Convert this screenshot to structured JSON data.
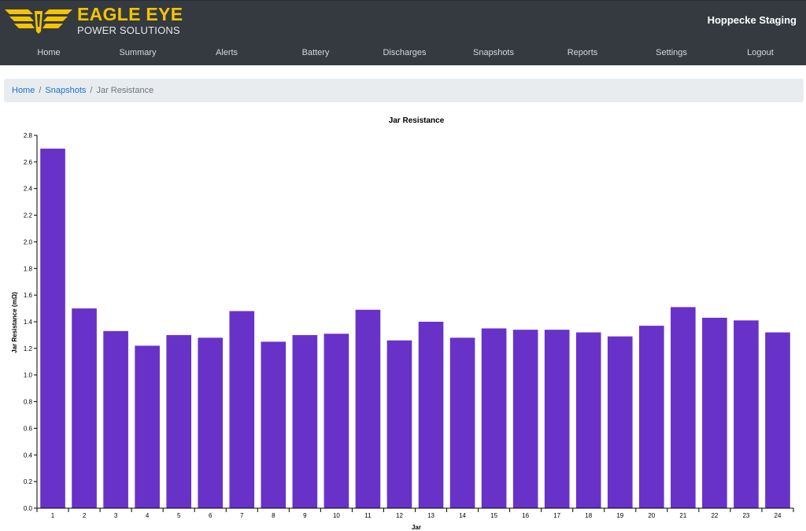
{
  "header": {
    "logo": {
      "line1": "EAGLE EYE",
      "line2": "POWER SOLUTIONS",
      "icon": "eagle-wings-logo"
    },
    "site_name": "Hoppecke Staging",
    "nav": [
      {
        "label": "Home"
      },
      {
        "label": "Summary"
      },
      {
        "label": "Alerts"
      },
      {
        "label": "Battery"
      },
      {
        "label": "Discharges"
      },
      {
        "label": "Snapshots"
      },
      {
        "label": "Reports"
      },
      {
        "label": "Settings"
      },
      {
        "label": "Logout"
      }
    ]
  },
  "breadcrumb": {
    "items": [
      {
        "label": "Home",
        "link": true
      },
      {
        "label": "Snapshots",
        "link": true
      },
      {
        "label": "Jar Resistance",
        "link": false
      }
    ],
    "separator": "/"
  },
  "colors": {
    "header_bg": "#343a40",
    "logo_yellow": "#f5c400",
    "bar": "#6832c9",
    "link": "#1a73c9"
  },
  "chart_data": {
    "type": "bar",
    "title": "Jar Resistance",
    "xlabel": "Jar",
    "ylabel": "Jar Resistance (mΩ)",
    "categories": [
      "1",
      "2",
      "3",
      "4",
      "5",
      "6",
      "7",
      "8",
      "9",
      "10",
      "11",
      "12",
      "13",
      "14",
      "15",
      "16",
      "17",
      "18",
      "19",
      "20",
      "21",
      "22",
      "23",
      "24"
    ],
    "values": [
      2.7,
      1.5,
      1.33,
      1.22,
      1.3,
      1.28,
      1.48,
      1.25,
      1.3,
      1.31,
      1.49,
      1.26,
      1.4,
      1.28,
      1.35,
      1.34,
      1.34,
      1.32,
      1.29,
      1.37,
      1.51,
      1.43,
      1.41,
      1.32
    ],
    "ylim": [
      0,
      2.8
    ],
    "yticks": [
      "0.0",
      "0.2",
      "0.4",
      "0.6",
      "0.8",
      "1.0",
      "1.2",
      "1.4",
      "1.6",
      "1.8",
      "2.0",
      "2.2",
      "2.4",
      "2.6",
      "2.8"
    ],
    "grid": false,
    "legend": "none"
  }
}
